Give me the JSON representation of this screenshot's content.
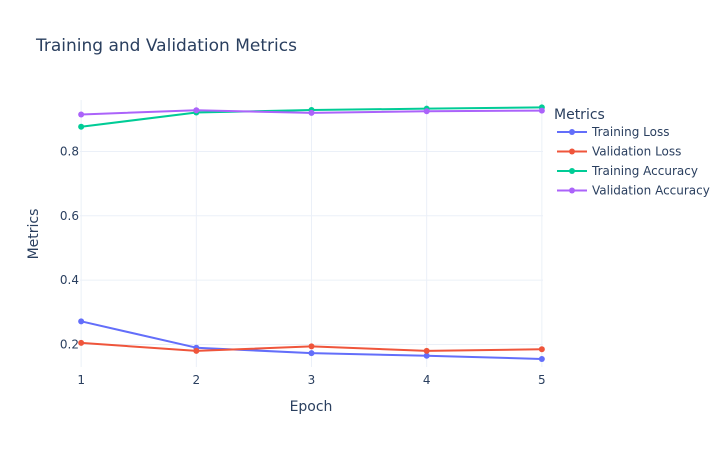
{
  "chart_data": {
    "type": "line",
    "title": "Training and Validation Metrics",
    "xlabel": "Epoch",
    "ylabel": "Metrics",
    "x": [
      1,
      2,
      3,
      4,
      5
    ],
    "xlim": [
      0.99,
      5.01
    ],
    "ylim": [
      0.13,
      0.96
    ],
    "xticks": [
      "1",
      "2",
      "3",
      "4",
      "5"
    ],
    "yticks": [
      0.2,
      0.4,
      0.6,
      0.8
    ],
    "ytick_labels": [
      "0.2",
      "0.4",
      "0.6",
      "0.8"
    ],
    "grid": true,
    "legend_title": "Metrics",
    "legend_position": "right",
    "series": [
      {
        "name": "Training Loss",
        "color": "#636efa",
        "values": [
          0.272,
          0.19,
          0.173,
          0.165,
          0.155
        ]
      },
      {
        "name": "Validation Loss",
        "color": "#ef553b",
        "values": [
          0.205,
          0.18,
          0.194,
          0.18,
          0.185
        ]
      },
      {
        "name": "Training Accuracy",
        "color": "#00cc96",
        "values": [
          0.877,
          0.921,
          0.929,
          0.933,
          0.937
        ]
      },
      {
        "name": "Validation Accuracy",
        "color": "#ab63fa",
        "values": [
          0.915,
          0.928,
          0.92,
          0.925,
          0.927
        ]
      }
    ]
  }
}
